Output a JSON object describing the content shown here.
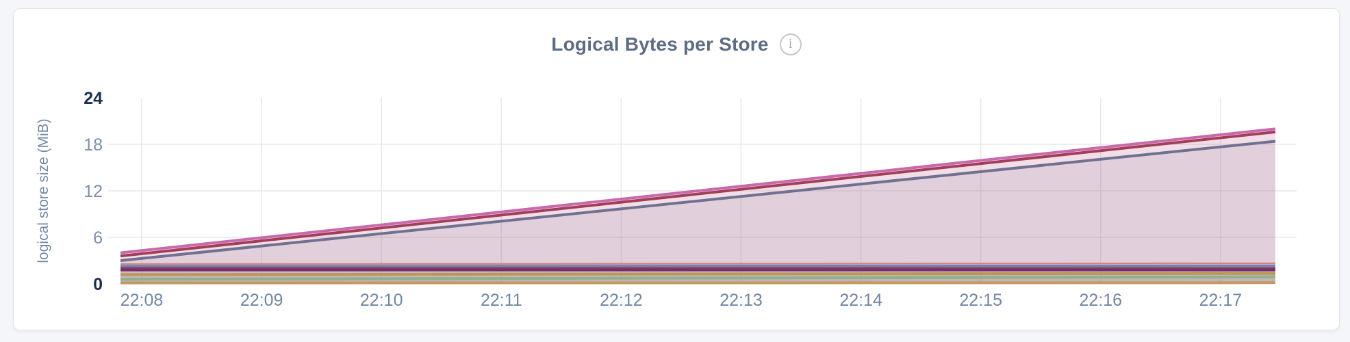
{
  "header": {
    "title": "Logical Bytes per Store",
    "info_icon_glyph": "i"
  },
  "colors": {
    "page_background": "#f4f6fa",
    "card_background": "#ffffff",
    "card_border": "#e3e4e8",
    "gridline": "#e7e8ea",
    "title_text": "#5d6b84",
    "x_tick_text": "#7186a2",
    "y_tick_text": "#7e90a7",
    "y_tick_text_bold": "#1d2f51",
    "y_axis_label_text": "#7588a6"
  },
  "chart_data": {
    "type": "area",
    "title": "Logical Bytes per Store",
    "xlabel": "",
    "ylabel": "logical store size (MiB)",
    "x_ticks": [
      "22:08",
      "22:09",
      "22:10",
      "22:11",
      "22:12",
      "22:13",
      "22:14",
      "22:15",
      "22:16",
      "22:17"
    ],
    "y_ticks": [
      0,
      6,
      12,
      18,
      24
    ],
    "y_ticks_bold": [
      0,
      24
    ],
    "ylim": [
      0,
      24
    ],
    "grid": true,
    "legend": false,
    "units": "MiB",
    "series": [
      {
        "id": "store-salmon",
        "color": "#d8837b",
        "stroke_width": 2.5,
        "fill_opacity": 0.05,
        "points": [
          {
            "t": 0,
            "v": 2.55
          },
          {
            "t": 1,
            "v": 2.65
          }
        ]
      },
      {
        "id": "store-blue",
        "color": "#6585bf",
        "stroke_width": 3,
        "fill_opacity": 0.05,
        "points": [
          {
            "t": 0,
            "v": 2.3
          },
          {
            "t": 1,
            "v": 2.35
          }
        ]
      },
      {
        "id": "store-maroon",
        "color": "#8e4156",
        "stroke_width": 3,
        "fill_opacity": 0.06,
        "points": [
          {
            "t": 0,
            "v": 2.05
          },
          {
            "t": 1,
            "v": 2.05
          }
        ]
      },
      {
        "id": "store-purple",
        "color": "#73306d",
        "stroke_width": 4,
        "fill_opacity": 0.06,
        "points": [
          {
            "t": 0,
            "v": 1.8
          },
          {
            "t": 1,
            "v": 1.8
          }
        ]
      },
      {
        "id": "store-tan",
        "color": "#ba9755",
        "stroke_width": 4,
        "fill_opacity": 0.08,
        "points": [
          {
            "t": 0,
            "v": 1.2
          },
          {
            "t": 1,
            "v": 1.35
          }
        ]
      },
      {
        "id": "store-green",
        "color": "#8bb288",
        "stroke_width": 4,
        "fill_opacity": 0.08,
        "points": [
          {
            "t": 0,
            "v": 0.6
          },
          {
            "t": 1,
            "v": 0.9
          }
        ]
      },
      {
        "id": "store-gold",
        "color": "#c19b5e",
        "stroke_width": 4,
        "fill_opacity": 0.08,
        "points": [
          {
            "t": 0,
            "v": 0.12
          },
          {
            "t": 1,
            "v": 0.15
          }
        ]
      },
      {
        "id": "store-gray-purple",
        "color": "#6f7190",
        "stroke_width": 4,
        "fill_opacity": 0.13,
        "points": [
          {
            "t": 0,
            "v": 3.0
          },
          {
            "t": 1,
            "v": 18.4
          }
        ]
      },
      {
        "id": "store-dark-red",
        "color": "#a23e57",
        "stroke_width": 4,
        "fill_opacity": 0.1,
        "points": [
          {
            "t": 0,
            "v": 3.6
          },
          {
            "t": 1,
            "v": 19.6
          }
        ]
      },
      {
        "id": "store-pink",
        "color": "#c968ac",
        "stroke_width": 4,
        "fill_opacity": 0.09,
        "points": [
          {
            "t": 0,
            "v": 4.0
          },
          {
            "t": 1,
            "v": 20.0
          }
        ]
      }
    ]
  }
}
